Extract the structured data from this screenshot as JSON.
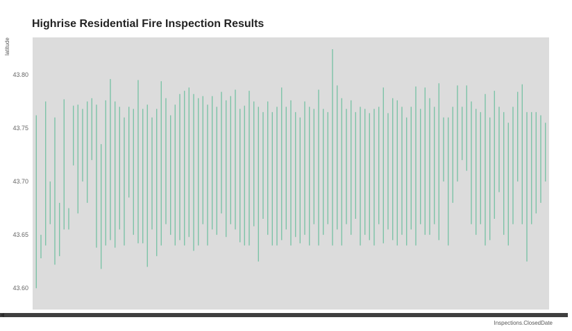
{
  "chart_data": {
    "type": "line",
    "title": "Highrise Residential Fire Inspection Results",
    "xlabel": "Inspections.ClosedDate",
    "ylabel": "latitude",
    "ylim": [
      43.58,
      43.835
    ],
    "yticks": [
      "43.60",
      "43.65",
      "43.70",
      "43.75",
      "43.80"
    ],
    "xticks_visible": false,
    "grid": false,
    "legend": "none",
    "plot_background": "#dcdcdc",
    "series": [
      {
        "color": "#7cc3a7",
        "segments": [
          [
            43.6,
            43.762
          ],
          [
            43.628,
            43.65
          ],
          [
            43.64,
            43.775
          ],
          [
            43.66,
            43.7
          ],
          [
            43.622,
            43.76
          ],
          [
            43.63,
            43.68
          ],
          [
            43.655,
            43.777
          ],
          [
            43.655,
            43.675
          ],
          [
            43.715,
            43.771
          ],
          [
            43.67,
            43.772
          ],
          [
            43.7,
            43.768
          ],
          [
            43.68,
            43.775
          ],
          [
            43.72,
            43.778
          ],
          [
            43.638,
            43.772
          ],
          [
            43.618,
            43.735
          ],
          [
            43.64,
            43.776
          ],
          [
            43.645,
            43.796
          ],
          [
            43.638,
            43.775
          ],
          [
            43.655,
            43.77
          ],
          [
            43.64,
            43.76
          ],
          [
            43.685,
            43.77
          ],
          [
            43.65,
            43.768
          ],
          [
            43.642,
            43.795
          ],
          [
            43.642,
            43.768
          ],
          [
            43.62,
            43.772
          ],
          [
            43.655,
            43.76
          ],
          [
            43.63,
            43.768
          ],
          [
            43.64,
            43.794
          ],
          [
            43.66,
            43.778
          ],
          [
            43.65,
            43.762
          ],
          [
            43.64,
            43.772
          ],
          [
            43.645,
            43.782
          ],
          [
            43.64,
            43.785
          ],
          [
            43.648,
            43.788
          ],
          [
            43.635,
            43.782
          ],
          [
            43.64,
            43.778
          ],
          [
            43.66,
            43.78
          ],
          [
            43.64,
            43.772
          ],
          [
            43.655,
            43.78
          ],
          [
            43.65,
            43.77
          ],
          [
            43.67,
            43.784
          ],
          [
            43.648,
            43.776
          ],
          [
            43.66,
            43.78
          ],
          [
            43.655,
            43.786
          ],
          [
            43.643,
            43.768
          ],
          [
            43.64,
            43.771
          ],
          [
            43.64,
            43.785
          ],
          [
            43.658,
            43.775
          ],
          [
            43.625,
            43.77
          ],
          [
            43.665,
            43.765
          ],
          [
            43.65,
            43.775
          ],
          [
            43.64,
            43.765
          ],
          [
            43.64,
            43.77
          ],
          [
            43.645,
            43.788
          ],
          [
            43.655,
            43.77
          ],
          [
            43.64,
            43.776
          ],
          [
            43.648,
            43.765
          ],
          [
            43.642,
            43.76
          ],
          [
            43.65,
            43.775
          ],
          [
            43.64,
            43.77
          ],
          [
            43.66,
            43.768
          ],
          [
            43.64,
            43.786
          ],
          [
            43.65,
            43.768
          ],
          [
            43.66,
            43.765
          ],
          [
            43.64,
            43.824
          ],
          [
            43.655,
            43.79
          ],
          [
            43.64,
            43.778
          ],
          [
            43.66,
            43.768
          ],
          [
            43.65,
            43.776
          ],
          [
            43.665,
            43.765
          ],
          [
            43.64,
            43.77
          ],
          [
            43.65,
            43.768
          ],
          [
            43.645,
            43.764
          ],
          [
            43.64,
            43.768
          ],
          [
            43.66,
            43.77
          ],
          [
            43.642,
            43.788
          ],
          [
            43.655,
            43.764
          ],
          [
            43.645,
            43.778
          ],
          [
            43.64,
            43.776
          ],
          [
            43.65,
            43.77
          ],
          [
            43.64,
            43.76
          ],
          [
            43.655,
            43.77
          ],
          [
            43.64,
            43.789
          ],
          [
            43.66,
            43.768
          ],
          [
            43.65,
            43.788
          ],
          [
            43.65,
            43.778
          ],
          [
            43.66,
            43.77
          ],
          [
            43.645,
            43.792
          ],
          [
            43.7,
            43.76
          ],
          [
            43.64,
            43.76
          ],
          [
            43.68,
            43.77
          ],
          [
            43.7,
            43.79
          ],
          [
            43.72,
            43.77
          ],
          [
            43.71,
            43.79
          ],
          [
            43.66,
            43.775
          ],
          [
            43.65,
            43.768
          ],
          [
            43.66,
            43.765
          ],
          [
            43.64,
            43.782
          ],
          [
            43.645,
            43.76
          ],
          [
            43.665,
            43.785
          ],
          [
            43.69,
            43.77
          ],
          [
            43.65,
            43.765
          ],
          [
            43.64,
            43.755
          ],
          [
            43.66,
            43.77
          ],
          [
            43.7,
            43.784
          ],
          [
            43.66,
            43.791
          ],
          [
            43.625,
            43.765
          ],
          [
            43.66,
            43.765
          ],
          [
            43.67,
            43.765
          ],
          [
            43.68,
            43.762
          ],
          [
            43.7,
            43.755
          ]
        ]
      }
    ]
  }
}
